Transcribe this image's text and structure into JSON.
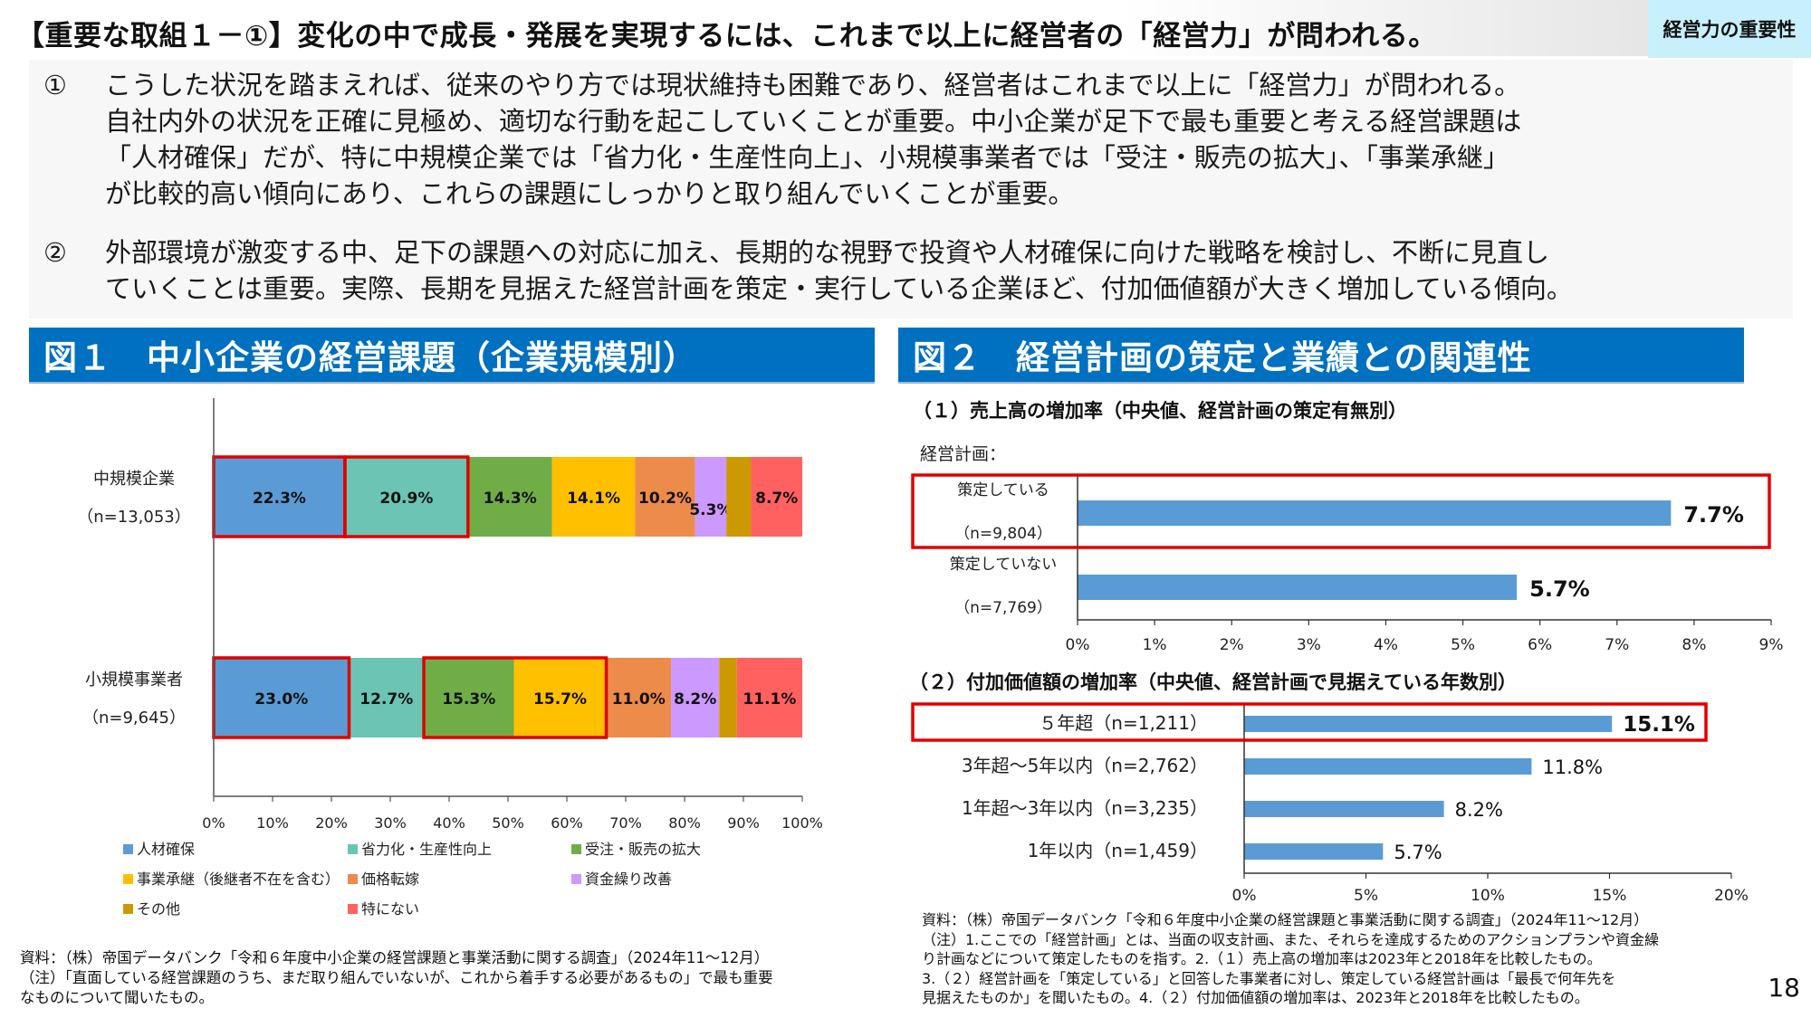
{
  "header": {
    "title": "【重要な取組１－①】変化の中で成長・発展を実現するには、これまで以上に経営者の「経営力」が問われる。",
    "tag": "経営力の重要性"
  },
  "summary": {
    "points": [
      {
        "num": "①",
        "lines": [
          "こうした状況を踏まえれば、従来のやり方では現状維持も困難であり、経営者はこれまで以上に「経営力」が問われる。",
          "自社内外の状況を正確に見極め、適切な行動を起こしていくことが重要。中小企業が足下で最も重要と考える経営課題は",
          "「人材確保」だが、特に中規模企業では「省力化・生産性向上」、小規模事業者では「受注・販売の拡大」、「事業承継」",
          "が比較的高い傾向にあり、これらの課題にしっかりと取り組んでいくことが重要。"
        ]
      },
      {
        "num": "②",
        "lines": [
          "外部環境が激変する中、足下の課題への対応に加え、長期的な視野で投資や人材確保に向けた戦略を検討し、不断に見直し",
          "ていくことは重要。実際、長期を見据えた経営計画を策定・実行している企業ほど、付加価値額が大きく増加している傾向。"
        ]
      }
    ]
  },
  "figure1": {
    "header": "図１　中小企業の経営課題（企業規模別）",
    "source_lines": [
      "資料：（株）帝国データバンク「令和６年度中小企業の経営課題と事業活動に関する調査」（2024年11～12月）",
      "（注）「直面している経営課題のうち、まだ取り組んでいないが、これから着手する必要があるもの」で最も重要",
      "なものについて聞いたもの。"
    ]
  },
  "figure2": {
    "header": "図２　経営計画の策定と業績との関連性",
    "source_lines": [
      "資料：（株）帝国データバンク「令和６年度中小企業の経営課題と事業活動に関する調査」（2024年11～12月）",
      "（注）1.ここでの「経営計画」とは、当面の収支計画、また、それらを達成するためのアクションプランや資金繰",
      "り計画などについて策定したものを指す。2.（１）売上高の増加率は2023年と2018年を比較したもの。",
      "3.（２）経営計画を「策定している」と回答した事業者に対し、策定している経営計画は「最長で何年先を",
      "見据えたものか」を聞いたもの。4.（２）付加価値額の増加率は、2023年と2018年を比較したもの。"
    ]
  },
  "page_number": "18",
  "chart_data": [
    {
      "type": "bar",
      "orientation": "horizontal",
      "stacked": true,
      "title": "図１　中小企業の経営課題（企業規模別）",
      "categories": [
        {
          "label": "中規模企業",
          "n": "（n=13,053）"
        },
        {
          "label": "小規模事業者",
          "n": "（n=9,645）"
        }
      ],
      "series": [
        {
          "name": "人材確保",
          "color": "#5b9bd5",
          "values": [
            22.3,
            23.0
          ],
          "labels": [
            "22.3%",
            "23.0%"
          ]
        },
        {
          "name": "省力化・生産性向上",
          "color": "#6cc5b4",
          "values": [
            20.9,
            12.7
          ],
          "labels": [
            "20.9%",
            "12.7%"
          ]
        },
        {
          "name": "受注・販売の拡大",
          "color": "#70ad47",
          "values": [
            14.3,
            15.3
          ],
          "labels": [
            "14.3%",
            "15.3%"
          ]
        },
        {
          "name": "事業承継（後継者不在を含む）",
          "color": "#ffc000",
          "values": [
            14.1,
            15.7
          ],
          "labels": [
            "14.1%",
            "15.7%"
          ]
        },
        {
          "name": "価格転嫁",
          "color": "#ed8b4a",
          "values": [
            10.2,
            11.0
          ],
          "labels": [
            "10.2%",
            "11.0%"
          ]
        },
        {
          "name": "資金繰り改善",
          "color": "#cc99ff",
          "values": [
            5.3,
            8.2
          ],
          "labels": [
            "5.3%",
            "8.2%"
          ]
        },
        {
          "name": "その他",
          "color": "#cc9900",
          "values": [
            4.2,
            3.0
          ],
          "labels": [
            "",
            ""
          ]
        },
        {
          "name": "特にない",
          "color": "#ff6161",
          "values": [
            8.7,
            11.1
          ],
          "labels": [
            "8.7%",
            "11.1%"
          ]
        }
      ],
      "highlights": [
        {
          "category": 0,
          "from_series": 0,
          "to_series": 0
        },
        {
          "category": 0,
          "from_series": 1,
          "to_series": 1
        },
        {
          "category": 1,
          "from_series": 0,
          "to_series": 0
        },
        {
          "category": 1,
          "from_series": 2,
          "to_series": 3
        }
      ],
      "xlim": [
        0,
        100
      ],
      "xticks": [
        "0%",
        "10%",
        "20%",
        "30%",
        "40%",
        "50%",
        "60%",
        "70%",
        "80%",
        "90%",
        "100%"
      ],
      "legend_position": "bottom"
    },
    {
      "type": "bar",
      "orientation": "horizontal",
      "title": "（１）売上高の増加率（中央値、経営計画の策定有無別）",
      "ylabel": "経営計画：",
      "color": "#5b9bd5",
      "categories": [
        {
          "label": "策定している",
          "n": "（n=9,804）"
        },
        {
          "label": "策定していない",
          "n": "（n=7,769）"
        }
      ],
      "values": [
        7.7,
        5.7
      ],
      "labels": [
        "7.7%",
        "5.7%"
      ],
      "highlight_index": 0,
      "xlim": [
        0,
        9
      ],
      "xticks": [
        "0%",
        "1%",
        "2%",
        "3%",
        "4%",
        "5%",
        "6%",
        "7%",
        "8%",
        "9%"
      ]
    },
    {
      "type": "bar",
      "orientation": "horizontal",
      "title": "（２）付加価値額の増加率（中央値、経営計画で見据えている年数別）",
      "color": "#5b9bd5",
      "categories": [
        "５年超（n=1,211）",
        "3年超～5年以内（n=2,762）",
        "1年超～3年以内（n=3,235）",
        "1年以内（n=1,459）"
      ],
      "values": [
        15.1,
        11.8,
        8.2,
        5.7
      ],
      "labels": [
        "15.1%",
        "11.8%",
        "8.2%",
        "5.7%"
      ],
      "highlight_index": 0,
      "xlim": [
        0,
        20
      ],
      "xticks": [
        "0%",
        "5%",
        "10%",
        "15%",
        "20%"
      ]
    }
  ]
}
